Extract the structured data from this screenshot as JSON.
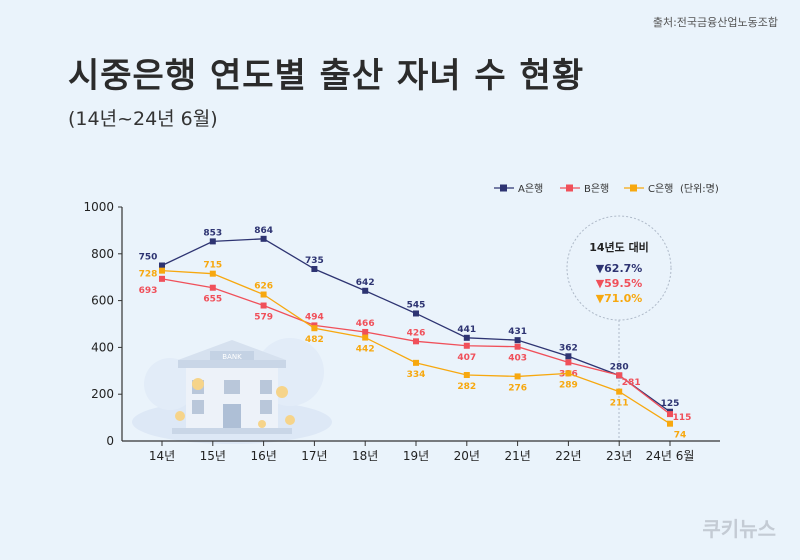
{
  "source": "출처:전국금융산업노동조합",
  "title": "시중은행 연도별 출산 자녀 수 현황",
  "subtitle": "(14년~24년 6월)",
  "brand": "쿠키뉴스",
  "unit_note": "(단위:명)",
  "comparison": {
    "heading": "14년도 대비",
    "items": [
      {
        "text": "▼62.7%",
        "color": "#2e3472"
      },
      {
        "text": "▼59.5%",
        "color": "#f0505a"
      },
      {
        "text": "▼71.0%",
        "color": "#f7a80f"
      }
    ]
  },
  "colors": {
    "A": "#2e3472",
    "B": "#f0505a",
    "C": "#f7a80f"
  },
  "chart_data": {
    "type": "line",
    "categories": [
      "14년",
      "15년",
      "16년",
      "17년",
      "18년",
      "19년",
      "20년",
      "21년",
      "22년",
      "23년",
      "24년 6월"
    ],
    "ylim": [
      0,
      1000
    ],
    "yticks": [
      0,
      200,
      400,
      600,
      800,
      1000
    ],
    "series": [
      {
        "name": "A은행",
        "color": "#2e3472",
        "values": [
          750,
          853,
          864,
          735,
          642,
          545,
          441,
          431,
          362,
          280,
          125
        ]
      },
      {
        "name": "B은행",
        "color": "#f0505a",
        "values": [
          693,
          655,
          579,
          494,
          466,
          426,
          407,
          403,
          336,
          281,
          115
        ]
      },
      {
        "name": "C은행",
        "color": "#f7a80f",
        "values": [
          728,
          715,
          626,
          482,
          442,
          334,
          282,
          276,
          289,
          211,
          74
        ]
      }
    ],
    "legend_position": "top-right",
    "grid": false
  }
}
